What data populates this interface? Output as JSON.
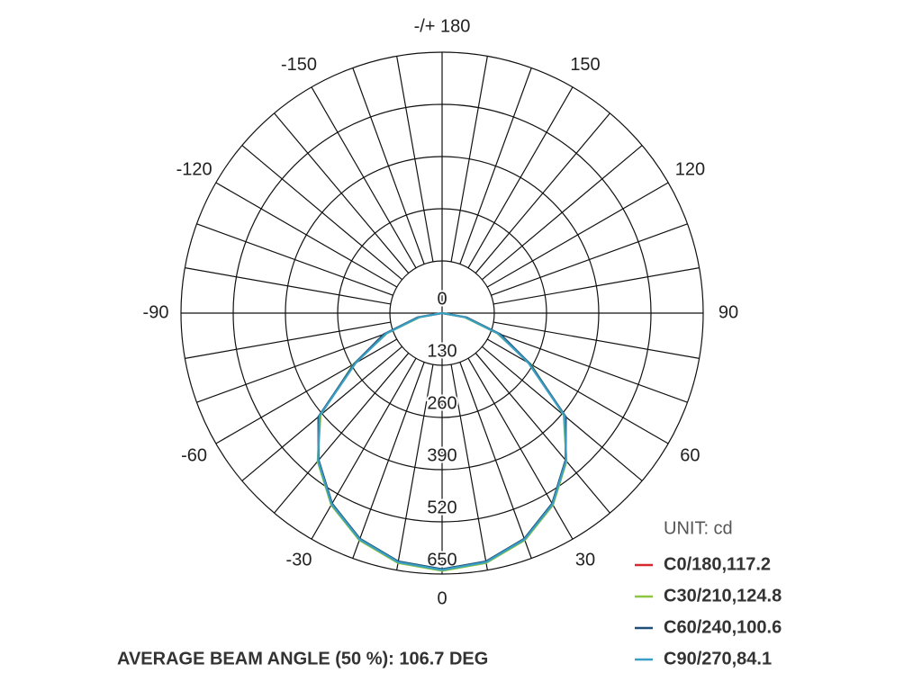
{
  "chart_data": {
    "type": "polar",
    "x": [
      -90,
      -80,
      -70,
      -60,
      -50,
      -40,
      -30,
      -20,
      -10,
      0,
      10,
      20,
      30,
      40,
      50,
      60,
      70,
      80,
      90
    ],
    "series": [
      {
        "name": "C0/180,117.2",
        "color": "#d7282f",
        "values": [
          0,
          60,
          150,
          250,
          400,
          480,
          550,
          600,
          630,
          640,
          630,
          600,
          550,
          480,
          400,
          250,
          150,
          60,
          0
        ]
      },
      {
        "name": "C30/210,124.8",
        "color": "#8dc63f",
        "values": [
          0,
          55,
          145,
          255,
          395,
          482,
          552,
          602,
          632,
          642,
          632,
          602,
          552,
          482,
          395,
          255,
          145,
          55,
          0
        ]
      },
      {
        "name": "C60/240,100.6",
        "color": "#1f4e79",
        "values": [
          0,
          62,
          155,
          252,
          402,
          478,
          548,
          598,
          628,
          638,
          628,
          598,
          548,
          478,
          402,
          252,
          155,
          62,
          0
        ]
      },
      {
        "name": "C90/270,84.1",
        "color": "#3a9fc4",
        "values": [
          0,
          58,
          148,
          248,
          398,
          480,
          550,
          600,
          630,
          640,
          630,
          600,
          550,
          480,
          398,
          248,
          148,
          58,
          0
        ]
      }
    ],
    "rlim": [
      0,
      650
    ],
    "rticks": [
      0,
      130,
      260,
      390,
      520,
      650
    ],
    "angle_ticks": [
      -150,
      -120,
      -90,
      -60,
      -30,
      0,
      30,
      60,
      90,
      120,
      150,
      {
        "value": 180,
        "label": "-/+ 180"
      }
    ],
    "unit_label": "UNIT: cd",
    "annotation": "AVERAGE BEAM ANGLE (50 %): 106.7 DEG"
  }
}
